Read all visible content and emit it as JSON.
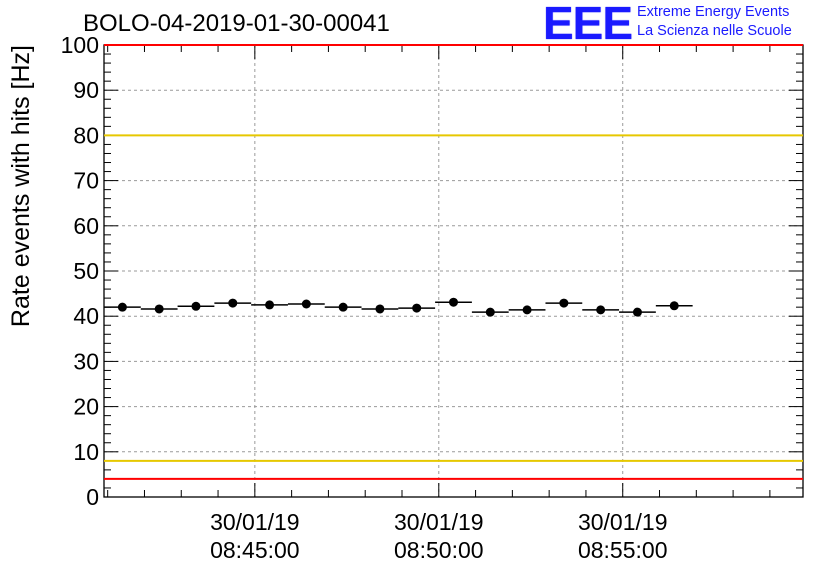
{
  "title": "BOLO-04-2019-01-30-00041",
  "logo": {
    "mark": "EEE",
    "line1": "Extreme Energy Events",
    "line2": "La Scienza nelle Scuole",
    "color": "#1a1aff"
  },
  "chart_data": {
    "type": "scatter",
    "ylabel": "Rate events with hits [Hz]",
    "xlabel": "",
    "ylim": [
      0,
      100
    ],
    "yticks": [
      0,
      10,
      20,
      30,
      40,
      50,
      60,
      70,
      80,
      90,
      100
    ],
    "xlim": [
      "08:40:54",
      "08:59:54"
    ],
    "xticks": [
      {
        "time": "08:45:00",
        "date": "30/01/19",
        "label": "30/01/19 08:45:00"
      },
      {
        "time": "08:50:00",
        "date": "30/01/19",
        "label": "30/01/19 08:50:00"
      },
      {
        "time": "08:55:00",
        "date": "30/01/19",
        "label": "30/01/19 08:55:00"
      }
    ],
    "grid": true,
    "bin_width_seconds": 60,
    "series": [
      {
        "marker": "filled-circle",
        "color": "#000000",
        "points": [
          {
            "t": "08:41:24",
            "y": 42.0
          },
          {
            "t": "08:42:24",
            "y": 41.6
          },
          {
            "t": "08:43:24",
            "y": 42.2
          },
          {
            "t": "08:44:24",
            "y": 42.9
          },
          {
            "t": "08:45:24",
            "y": 42.5
          },
          {
            "t": "08:46:24",
            "y": 42.7
          },
          {
            "t": "08:47:24",
            "y": 42.0
          },
          {
            "t": "08:48:24",
            "y": 41.6
          },
          {
            "t": "08:49:24",
            "y": 41.8
          },
          {
            "t": "08:50:24",
            "y": 43.1
          },
          {
            "t": "08:51:24",
            "y": 40.9
          },
          {
            "t": "08:52:24",
            "y": 41.4
          },
          {
            "t": "08:53:24",
            "y": 42.9
          },
          {
            "t": "08:54:24",
            "y": 41.4
          },
          {
            "t": "08:55:24",
            "y": 40.9
          },
          {
            "t": "08:56:24",
            "y": 42.3
          }
        ]
      }
    ],
    "reference_lines": [
      {
        "y": 100,
        "color": "#ff0000"
      },
      {
        "y": 80,
        "color": "#e6c800"
      },
      {
        "y": 8,
        "color": "#e6c800"
      },
      {
        "y": 4,
        "color": "#ff0000"
      }
    ]
  }
}
